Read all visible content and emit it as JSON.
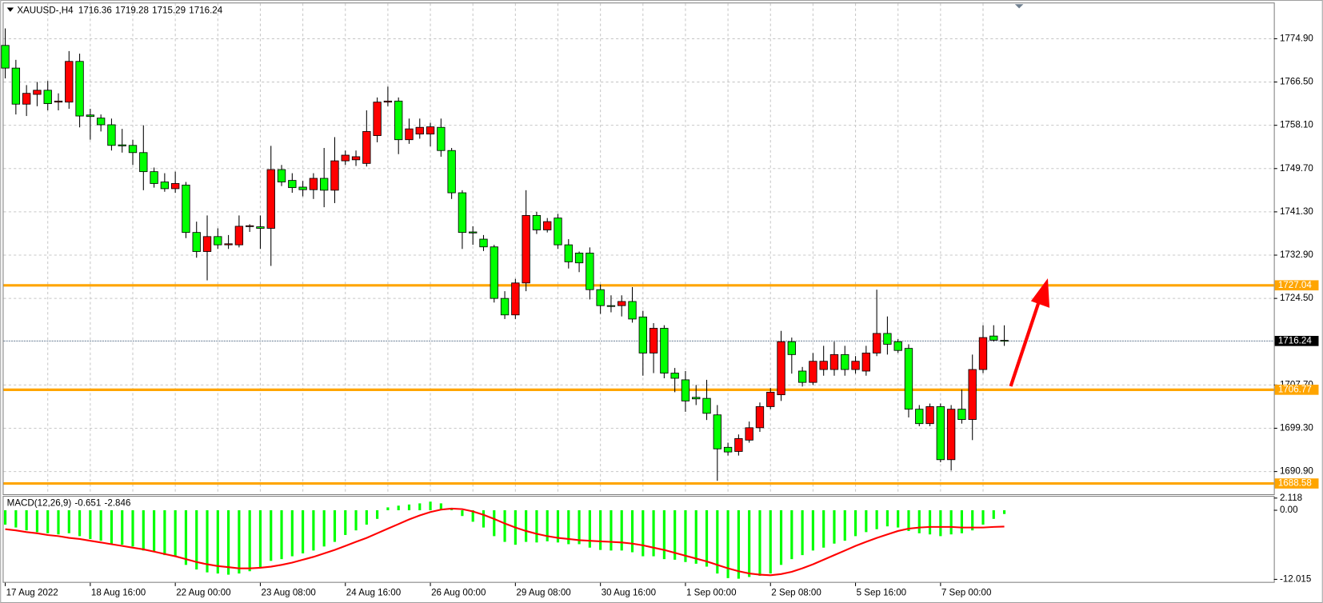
{
  "chart_data": [
    {
      "type": "candlestick",
      "title": "XAUUSD-,H4",
      "categories": [
        "17 Aug 2022",
        null,
        null,
        null,
        null,
        null,
        null,
        null,
        "18 Aug 16:00",
        null,
        null,
        null,
        null,
        null,
        null,
        null,
        "22 Aug 00:00",
        null,
        null,
        null,
        null,
        null,
        null,
        null,
        "23 Aug 08:00",
        null,
        null,
        null,
        null,
        null,
        null,
        null,
        "24 Aug 16:00",
        null,
        null,
        null,
        null,
        null,
        null,
        null,
        "26 Aug 00:00",
        null,
        null,
        null,
        null,
        null,
        null,
        null,
        "29 Aug 08:00",
        null,
        null,
        null,
        null,
        null,
        null,
        null,
        "30 Aug 16:00",
        null,
        null,
        null,
        null,
        null,
        null,
        null,
        "1 Sep 00:00",
        null,
        null,
        null,
        null,
        null,
        null,
        null,
        "2 Sep 08:00",
        null,
        null,
        null,
        null,
        null,
        null,
        null,
        "5 Sep 16:00",
        null,
        null,
        null,
        null,
        null,
        null,
        null,
        "7 Sep 00:00",
        null,
        null,
        null,
        null,
        null,
        null
      ],
      "open": [
        1773.6,
        1769.2,
        1762.2,
        1764.1,
        1764.9,
        1762.6,
        1762.6,
        1770.5,
        1760.1,
        1759.5,
        1758.2,
        1754.3,
        1754.2,
        1752.8,
        1749.1,
        1747.1,
        1745.8,
        1746.5,
        1737.3,
        1733.6,
        1736.5,
        1734.9,
        1734.9,
        1738.5,
        1738.4,
        1738.1,
        1749.5,
        1747.4,
        1746.1,
        1745.6,
        1747.8,
        1745.5,
        1751.2,
        1751.4,
        1750.7,
        1756.1,
        1762.6,
        1762.8,
        1755.3,
        1756.4,
        1756.4,
        1757.7,
        1753.2,
        1745.0,
        1737.4,
        1736.0,
        1734.5,
        1724.5,
        1721.3,
        1727.5,
        1740.6,
        1737.8,
        1740.1,
        1734.9,
        1733.3,
        1733.3,
        1726.2,
        1723.1,
        1723.1,
        1723.9,
        1720.9,
        1713.9,
        1718.7,
        1710.0,
        1708.7,
        1705.3,
        1705.1,
        1701.9,
        1695.6,
        1694.8,
        1697.0,
        1699.4,
        1703.5,
        1705.8,
        1716.1,
        1710.4,
        1708.2,
        1710.7,
        1710.7,
        1713.6,
        1710.7,
        1710.4,
        1713.9,
        1717.7,
        1716.1,
        1714.8,
        1703.0,
        1700.2,
        1703.5,
        1693.2,
        1703.0,
        1701.0,
        1710.7,
        1717.2,
        1716.36
      ],
      "high": [
        1776.9,
        1770.8,
        1765.9,
        1766.5,
        1766.7,
        1764.3,
        1772.5,
        1772.0,
        1761.3,
        1760.2,
        1759.4,
        1757.4,
        1755.3,
        1758.1,
        1749.9,
        1748.8,
        1749.1,
        1747.1,
        1739.4,
        1740.6,
        1738.1,
        1736.8,
        1740.6,
        1738.9,
        1740.6,
        1754.1,
        1750.4,
        1748.8,
        1747.3,
        1748.8,
        1753.7,
        1755.8,
        1753.2,
        1753.2,
        1761.0,
        1763.5,
        1765.6,
        1763.5,
        1759.4,
        1759.4,
        1758.6,
        1759.4,
        1753.7,
        1745.5,
        1738.5,
        1736.8,
        1734.9,
        1725.9,
        1728.3,
        1745.5,
        1741.3,
        1740.1,
        1740.9,
        1736.0,
        1733.6,
        1734.4,
        1727.2,
        1725.1,
        1725.1,
        1726.7,
        1722.1,
        1719.7,
        1719.3,
        1711.0,
        1710.4,
        1707.7,
        1708.7,
        1703.8,
        1696.5,
        1698.1,
        1700.6,
        1704.3,
        1707.1,
        1718.2,
        1716.9,
        1711.2,
        1713.9,
        1715.3,
        1716.1,
        1715.3,
        1713.3,
        1715.3,
        1726.2,
        1721.0,
        1716.6,
        1715.6,
        1703.8,
        1704.1,
        1704.1,
        1703.8,
        1706.8,
        1713.6,
        1719.3,
        1719.3,
        1719.28
      ],
      "low": [
        1767.2,
        1760.2,
        1759.9,
        1761.8,
        1761.0,
        1761.0,
        1761.3,
        1757.7,
        1755.3,
        1756.9,
        1753.2,
        1752.8,
        1750.4,
        1745.5,
        1746.0,
        1745.2,
        1745.0,
        1736.2,
        1732.4,
        1728.0,
        1734.1,
        1734.1,
        1734.4,
        1737.4,
        1734.1,
        1730.8,
        1746.3,
        1745.0,
        1744.3,
        1743.8,
        1742.2,
        1743.0,
        1750.4,
        1750.2,
        1750.1,
        1754.8,
        1761.8,
        1752.5,
        1754.5,
        1755.5,
        1754.0,
        1752.0,
        1743.8,
        1734.1,
        1734.9,
        1733.7,
        1723.7,
        1720.5,
        1720.5,
        1725.9,
        1737.0,
        1737.3,
        1734.1,
        1730.3,
        1729.6,
        1724.3,
        1721.5,
        1721.8,
        1721.0,
        1719.8,
        1709.5,
        1710.0,
        1709.0,
        1706.3,
        1702.5,
        1703.8,
        1700.9,
        1689.1,
        1694.0,
        1694.0,
        1696.5,
        1698.6,
        1703.0,
        1704.6,
        1709.9,
        1707.4,
        1707.7,
        1709.5,
        1709.5,
        1709.5,
        1709.9,
        1709.5,
        1713.3,
        1713.6,
        1713.9,
        1701.4,
        1699.7,
        1699.7,
        1692.7,
        1691.1,
        1700.2,
        1697.0,
        1710.0,
        1716.1,
        1715.29
      ],
      "close": [
        1769.2,
        1762.2,
        1764.3,
        1764.9,
        1762.3,
        1762.8,
        1770.5,
        1759.9,
        1759.8,
        1758.2,
        1754.2,
        1754.1,
        1752.8,
        1749.1,
        1746.8,
        1745.8,
        1746.8,
        1737.3,
        1733.6,
        1736.5,
        1734.9,
        1735.1,
        1738.5,
        1738.6,
        1738.1,
        1749.5,
        1747.1,
        1746.0,
        1745.6,
        1747.8,
        1745.5,
        1751.2,
        1752.3,
        1752.0,
        1756.9,
        1762.6,
        1762.8,
        1755.3,
        1757.4,
        1757.7,
        1757.8,
        1753.2,
        1745.0,
        1737.3,
        1737.2,
        1734.5,
        1724.5,
        1721.3,
        1727.5,
        1740.6,
        1737.8,
        1739.4,
        1734.9,
        1731.6,
        1731.4,
        1726.2,
        1723.1,
        1723.0,
        1723.9,
        1720.5,
        1713.9,
        1718.7,
        1710.0,
        1709.0,
        1704.6,
        1705.0,
        1702.2,
        1695.3,
        1694.7,
        1697.3,
        1699.4,
        1703.5,
        1706.3,
        1716.1,
        1713.6,
        1708.2,
        1712.3,
        1712.3,
        1713.6,
        1710.7,
        1712.3,
        1713.9,
        1717.7,
        1715.6,
        1714.4,
        1703.0,
        1700.2,
        1703.5,
        1693.2,
        1703.0,
        1701.0,
        1710.7,
        1716.9,
        1716.4,
        1716.24
      ],
      "up_color": "#ff0000",
      "down_color": "#00ff00",
      "ylim": [
        1686.5,
        1781.76
      ],
      "yticks": [
        {
          "value": 1774.9,
          "label": "1774.90"
        },
        {
          "value": 1766.5,
          "label": "1766.50"
        },
        {
          "value": 1758.1,
          "label": "1758.10"
        },
        {
          "value": 1749.7,
          "label": "1749.70"
        },
        {
          "value": 1741.3,
          "label": "1741.30"
        },
        {
          "value": 1732.9,
          "label": "1732.90"
        },
        {
          "value": 1724.5,
          "label": "1724.50"
        },
        {
          "value": 1707.7,
          "label": "1707.70"
        },
        {
          "value": 1699.3,
          "label": "1699.30"
        },
        {
          "value": 1690.9,
          "label": "1690.90"
        }
      ],
      "grid": true,
      "levels": [
        {
          "value": 1727.04,
          "color": "#ffa500"
        },
        {
          "value": 1706.77,
          "color": "#ffa500"
        },
        {
          "value": 1688.58,
          "color": "#ffa500"
        }
      ]
    },
    {
      "type": "bar",
      "title": "MACD(12,26,9)",
      "series": [
        {
          "type": "bar",
          "color": "#00ff00",
          "values": [
            -2.5,
            -3,
            -3.5,
            -3.8,
            -4,
            -4.2,
            -4,
            -4.5,
            -5,
            -5.3,
            -5.8,
            -6,
            -6.3,
            -7,
            -7.3,
            -7.8,
            -8,
            -9.5,
            -10.3,
            -10.8,
            -11,
            -11.2,
            -11,
            -10.6,
            -10,
            -8.8,
            -8.5,
            -8,
            -7.5,
            -7,
            -6.3,
            -5.5,
            -4.3,
            -3.5,
            -2.5,
            -1.5,
            0.5,
            0.8,
            1,
            1.2,
            1.5,
            1.2,
            0.2,
            -1,
            -2,
            -3,
            -4.5,
            -5.5,
            -6,
            -5.5,
            -5.6,
            -5.4,
            -5.6,
            -5.9,
            -5.9,
            -6.5,
            -6.9,
            -7,
            -7,
            -7.3,
            -8,
            -8,
            -8.5,
            -8.6,
            -9,
            -9.3,
            -9.8,
            -11,
            -11.8,
            -11.9,
            -11.6,
            -11.4,
            -11,
            -9.5,
            -8.5,
            -7.8,
            -7,
            -6.5,
            -5.8,
            -5.3,
            -4.5,
            -3.8,
            -3.3,
            -2.8,
            -3,
            -3.6,
            -4,
            -4.2,
            -4.5,
            -4.2,
            -4,
            -3.5,
            -2.5,
            -1.5,
            -0.651
          ]
        },
        {
          "type": "line",
          "color": "#ff0000",
          "values": [
            -3.3,
            -3.5,
            -3.8,
            -4.0,
            -4.3,
            -4.5,
            -4.8,
            -5.0,
            -5.3,
            -5.6,
            -5.9,
            -6.2,
            -6.5,
            -6.8,
            -7.2,
            -7.6,
            -8.0,
            -8.5,
            -9.0,
            -9.4,
            -9.7,
            -9.9,
            -10.1,
            -10.1,
            -10.0,
            -9.8,
            -9.5,
            -9.1,
            -8.6,
            -8.1,
            -7.5,
            -6.9,
            -6.2,
            -5.5,
            -4.8,
            -4.0,
            -3.2,
            -2.4,
            -1.6,
            -0.9,
            -0.3,
            0.1,
            0.3,
            0.2,
            -0.2,
            -0.8,
            -1.5,
            -2.3,
            -3.0,
            -3.6,
            -4.1,
            -4.5,
            -4.8,
            -5.0,
            -5.2,
            -5.3,
            -5.4,
            -5.5,
            -5.6,
            -5.8,
            -6.1,
            -6.5,
            -6.9,
            -7.4,
            -7.9,
            -8.4,
            -8.9,
            -9.5,
            -10.1,
            -10.6,
            -11.0,
            -11.2,
            -11.3,
            -11.1,
            -10.7,
            -10.1,
            -9.4,
            -8.6,
            -7.8,
            -7.0,
            -6.2,
            -5.5,
            -4.8,
            -4.2,
            -3.6,
            -3.2,
            -3.0,
            -2.9,
            -2.9,
            -2.9,
            -3.0,
            -3.0,
            -3.0,
            -2.9,
            -2.846
          ]
        }
      ],
      "ylim": [
        -12.46,
        2.35
      ],
      "yticks": [
        2.118,
        {
          "value": 0,
          "label": "0.00"
        },
        -12.015
      ]
    }
  ]
}
